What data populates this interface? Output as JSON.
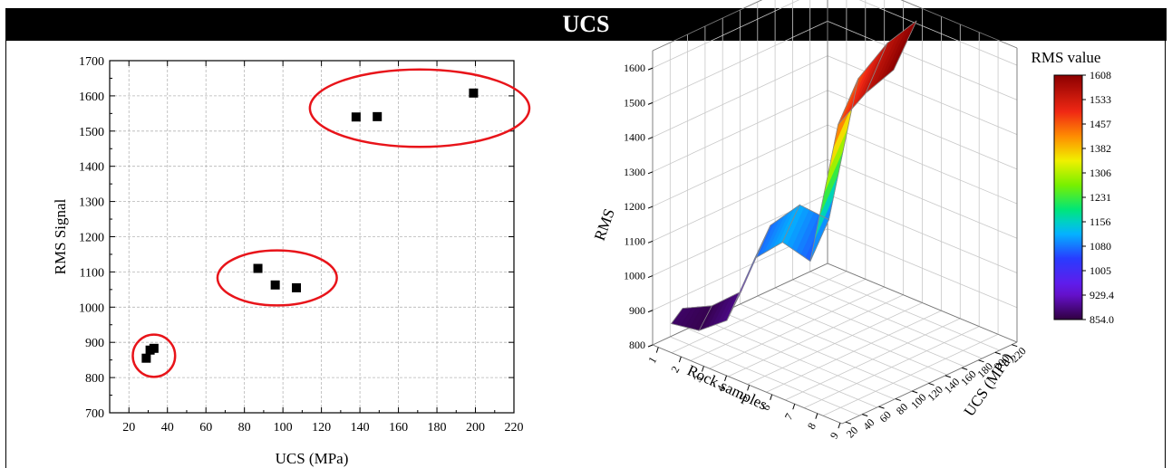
{
  "header": {
    "title": "UCS"
  },
  "chart_data": [
    {
      "type": "scatter",
      "xlabel": "UCS (MPa)",
      "ylabel": "RMS Signal",
      "xlim": [
        10,
        220
      ],
      "ylim": [
        700,
        1700
      ],
      "xticks": [
        "20",
        "40",
        "60",
        "80",
        "100",
        "120",
        "140",
        "160",
        "180",
        "200",
        "220"
      ],
      "yticks": [
        "700",
        "800",
        "900",
        "1000",
        "1100",
        "1200",
        "1300",
        "1400",
        "1500",
        "1600",
        "1700"
      ],
      "grid": true,
      "marker_color": "#000000",
      "cluster_color": "#e8141a",
      "points": [
        {
          "x": 29,
          "y": 855
        },
        {
          "x": 31,
          "y": 878
        },
        {
          "x": 33,
          "y": 883
        },
        {
          "x": 87,
          "y": 1110
        },
        {
          "x": 96,
          "y": 1063
        },
        {
          "x": 107,
          "y": 1055
        },
        {
          "x": 138,
          "y": 1540
        },
        {
          "x": 149,
          "y": 1541
        },
        {
          "x": 199,
          "y": 1608
        }
      ],
      "clusters": [
        {
          "cx": 33,
          "cy": 862,
          "rx": 11,
          "ry": 60
        },
        {
          "cx": 97,
          "cy": 1083,
          "rx": 31,
          "ry": 78
        },
        {
          "cx": 171,
          "cy": 1565,
          "rx": 57,
          "ry": 110
        }
      ]
    },
    {
      "type": "surface3d",
      "zlabel": "RMS",
      "xlabel": "Rock samples",
      "ylabel": "UCS (MPa)",
      "zticks": [
        "800",
        "900",
        "1000",
        "1100",
        "1200",
        "1300",
        "1400",
        "1500",
        "1600"
      ],
      "xticks": [
        "1",
        "2",
        "3",
        "4",
        "5",
        "6",
        "7",
        "8",
        "9"
      ],
      "yticks": [
        "20",
        "40",
        "60",
        "80",
        "100",
        "120",
        "140",
        "160",
        "180",
        "200",
        "220"
      ],
      "surface_rms": [
        875,
        855,
        884,
        1063,
        1110,
        1055,
        1450,
        1541,
        1608
      ],
      "legend": {
        "title": "RMS value",
        "labels": [
          "1608",
          "1533",
          "1457",
          "1382",
          "1306",
          "1231",
          "1156",
          "1080",
          "1005",
          "929.4",
          "854.0"
        ]
      }
    }
  ]
}
